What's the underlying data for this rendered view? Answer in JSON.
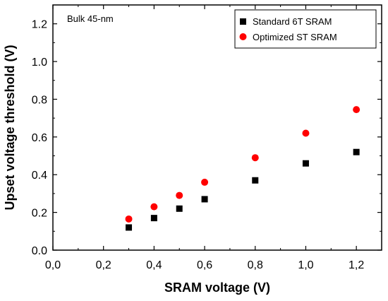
{
  "chart_data": {
    "type": "scatter",
    "title": "",
    "annotation": "Bulk 45-nm",
    "xlabel": "SRAM voltage (V)",
    "ylabel": "Upset voltage threshold (V)",
    "xlim": [
      0.0,
      1.3
    ],
    "ylim": [
      0.0,
      1.3
    ],
    "xticks": [
      "0,0",
      "0,2",
      "0,4",
      "0,6",
      "0,8",
      "1,0",
      "1,2"
    ],
    "yticks": [
      "0.0",
      "0.2",
      "0.4",
      "0.6",
      "0.8",
      "1.0",
      "1.2"
    ],
    "grid": false,
    "legend_position": "top-right",
    "series": [
      {
        "name": "Standard 6T SRAM",
        "marker": "square",
        "color": "#000000",
        "x": [
          0.3,
          0.4,
          0.5,
          0.6,
          0.8,
          1.0,
          1.2
        ],
        "y": [
          0.12,
          0.17,
          0.22,
          0.27,
          0.37,
          0.46,
          0.52
        ]
      },
      {
        "name": "Optimized ST SRAM",
        "marker": "circle",
        "color": "#ff0000",
        "x": [
          0.3,
          0.4,
          0.5,
          0.6,
          0.8,
          1.0,
          1.2
        ],
        "y": [
          0.165,
          0.23,
          0.29,
          0.36,
          0.49,
          0.62,
          0.745
        ]
      }
    ]
  }
}
